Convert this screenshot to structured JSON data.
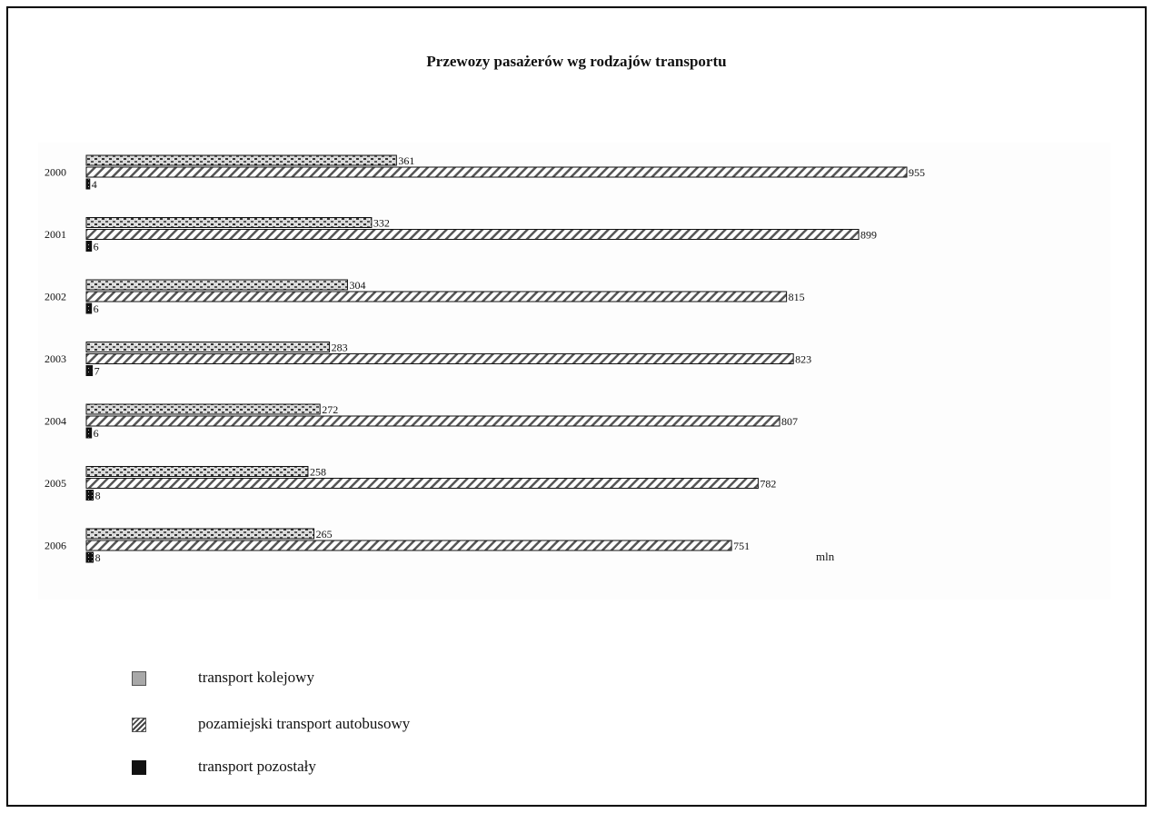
{
  "chart_data": {
    "type": "bar",
    "orientation": "horizontal",
    "title": "Przewozy pasażerów wg rodzajów transportu",
    "unit": "mln",
    "categories": [
      "2000",
      "2001",
      "2002",
      "2003",
      "2004",
      "2005",
      "2006"
    ],
    "series": [
      {
        "name": "transport kolejowy",
        "values": [
          361,
          332,
          304,
          283,
          272,
          258,
          265
        ],
        "color": "#9a9a9a",
        "pattern": "dots-light"
      },
      {
        "name": "pozamiejski transport autobusowy",
        "values": [
          955,
          899,
          815,
          823,
          807,
          782,
          751
        ],
        "color": "#777777",
        "pattern": "hatch"
      },
      {
        "name": "transport pozostały",
        "values": [
          4,
          6,
          6,
          7,
          6,
          8,
          8
        ],
        "color": "#111111",
        "pattern": "dots-dark"
      }
    ],
    "xlim": [
      0,
      955
    ],
    "grid": false,
    "legend_position": "bottom-left"
  }
}
